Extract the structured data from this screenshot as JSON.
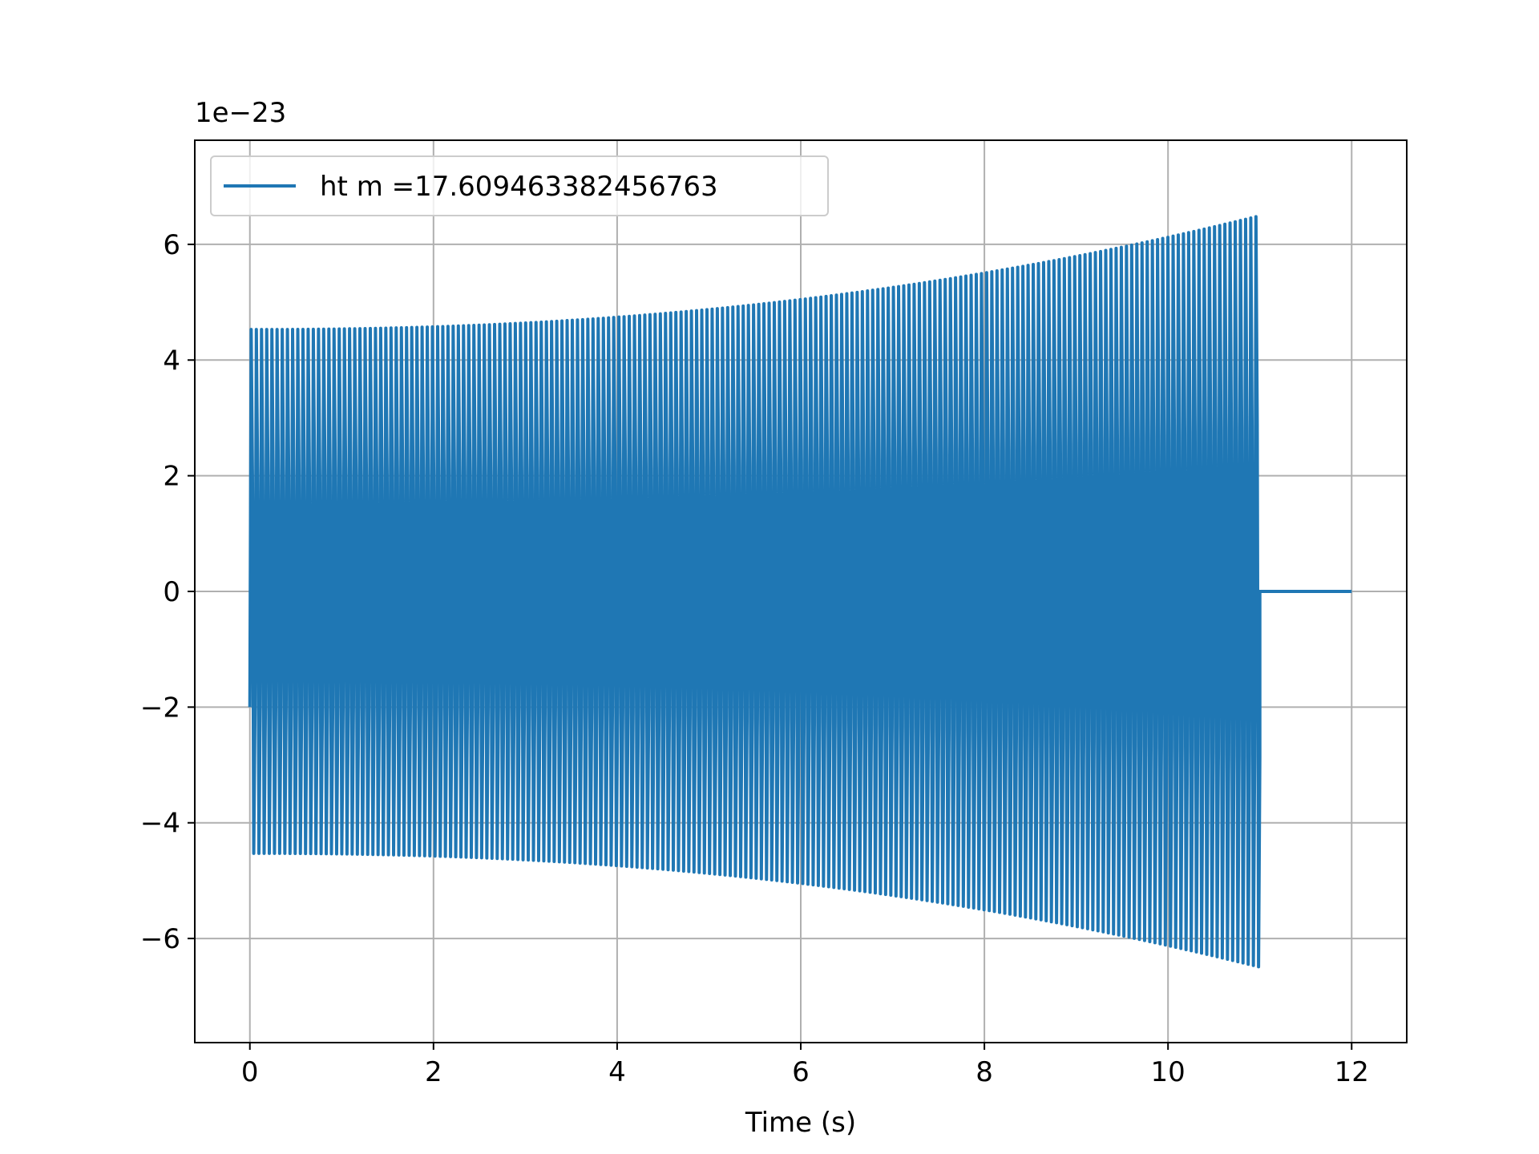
{
  "chart_data": {
    "type": "line",
    "title": "",
    "xlabel": "Time (s)",
    "ylabel": "",
    "y_offset_label": "1e−23",
    "xlim": [
      -0.6,
      12.6
    ],
    "ylim": [
      -7.8,
      7.8
    ],
    "x_ticks": [
      0,
      2,
      4,
      6,
      8,
      10,
      12
    ],
    "x_tick_labels": [
      "0",
      "2",
      "4",
      "6",
      "8",
      "10",
      "12"
    ],
    "y_ticks": [
      -6,
      -4,
      -2,
      0,
      2,
      4,
      6
    ],
    "y_tick_labels": [
      "−6",
      "−4",
      "−2",
      "0",
      "2",
      "4",
      "6"
    ],
    "grid": true,
    "legend_position": "upper-left",
    "series": [
      {
        "name": "ht m =17.609463382456763",
        "color": "#1f77b4",
        "signal": "chirp",
        "t_start": 0.0,
        "t_merge": 11.0,
        "t_end": 12.0,
        "initial_amplitude": 4.95,
        "final_amplitude": 7.1,
        "start_value": -2.0,
        "approx_cycles": 195,
        "after_merge_value": 0.0
      }
    ]
  }
}
